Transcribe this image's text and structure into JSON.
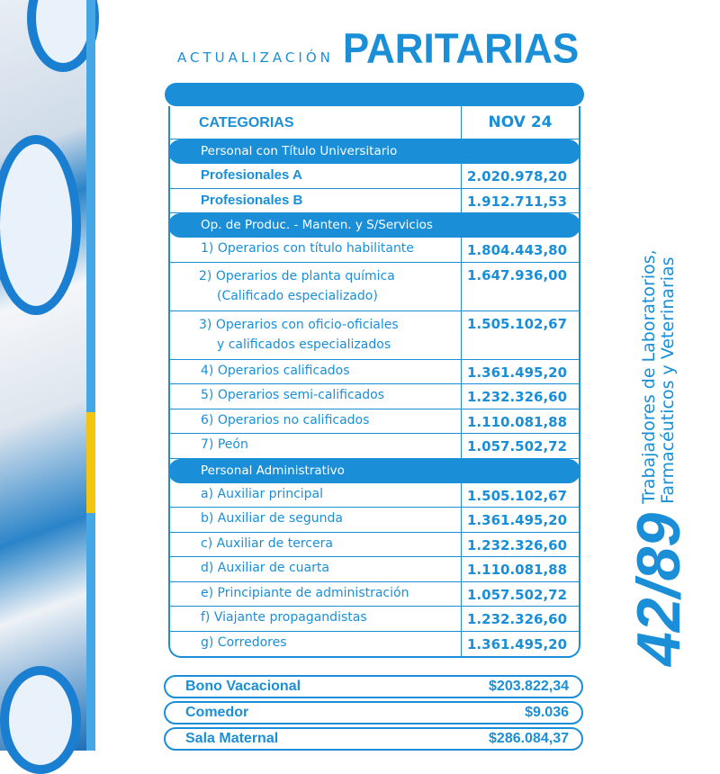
{
  "title": {
    "prefix": "ACTUALIZACIÓN",
    "main": "PARITARIAS"
  },
  "table": {
    "col_category": "CATEGORIAS",
    "col_period": "NOV 24",
    "rows": [
      {
        "type": "section",
        "label": "Personal con Título Universitario"
      },
      {
        "type": "p",
        "label": "Profesionales A",
        "value": "2.020.978,20"
      },
      {
        "type": "p",
        "label": "Profesionales B",
        "value": "1.912.711,53"
      },
      {
        "type": "section",
        "label": "Op. de Produc. - Manten. y S/Servicios"
      },
      {
        "type": "n",
        "label": "1) Operarios con título habilitante",
        "value": "1.804.443,80"
      },
      {
        "type": "d",
        "label": "2) Operarios de planta química",
        "label2": "(Calificado especializado)",
        "value": "1.647.936,00"
      },
      {
        "type": "d",
        "label": "3) Operarios con oficio-oficiales",
        "label2": "y calificados especializados",
        "value": "1.505.102,67"
      },
      {
        "type": "n",
        "label": "4) Operarios calificados",
        "value": "1.361.495,20"
      },
      {
        "type": "n",
        "label": "5) Operarios semi-calificados",
        "value": "1.232.326,60"
      },
      {
        "type": "n",
        "label": "6) Operarios no calificados",
        "value": "1.110.081,88"
      },
      {
        "type": "n",
        "label": "7) Peón",
        "value": "1.057.502,72"
      },
      {
        "type": "section",
        "label": "Personal Administrativo"
      },
      {
        "type": "n",
        "label": "a) Auxiliar principal",
        "value": "1.505.102,67"
      },
      {
        "type": "n",
        "label": "b) Auxiliar de segunda",
        "value": "1.361.495,20"
      },
      {
        "type": "n",
        "label": "c) Auxiliar de tercera",
        "value": "1.232.326,60"
      },
      {
        "type": "n",
        "label": "d) Auxiliar de cuarta",
        "value": "1.110.081,88"
      },
      {
        "type": "n",
        "label": "e) Principiante de administración",
        "value": "1.057.502,72"
      },
      {
        "type": "n",
        "label": "f) Viajante propagandistas",
        "value": "1.232.326,60"
      },
      {
        "type": "n",
        "label": "g) Corredores",
        "value": "1.361.495,20"
      }
    ]
  },
  "extras": [
    {
      "label": "Bono Vacacional",
      "value": "$203.822,34"
    },
    {
      "label": "Comedor",
      "value": "$9.036"
    },
    {
      "label": "Sala Maternal",
      "value": "$286.084,37"
    }
  ],
  "side": {
    "agreement": "42/89",
    "line1": "Trabajadores de Laboratorios,",
    "line2": "Farmacéuticos y Veterinarias"
  },
  "colors": {
    "brand": "#1a8fd8",
    "accent": "#f2c511"
  }
}
